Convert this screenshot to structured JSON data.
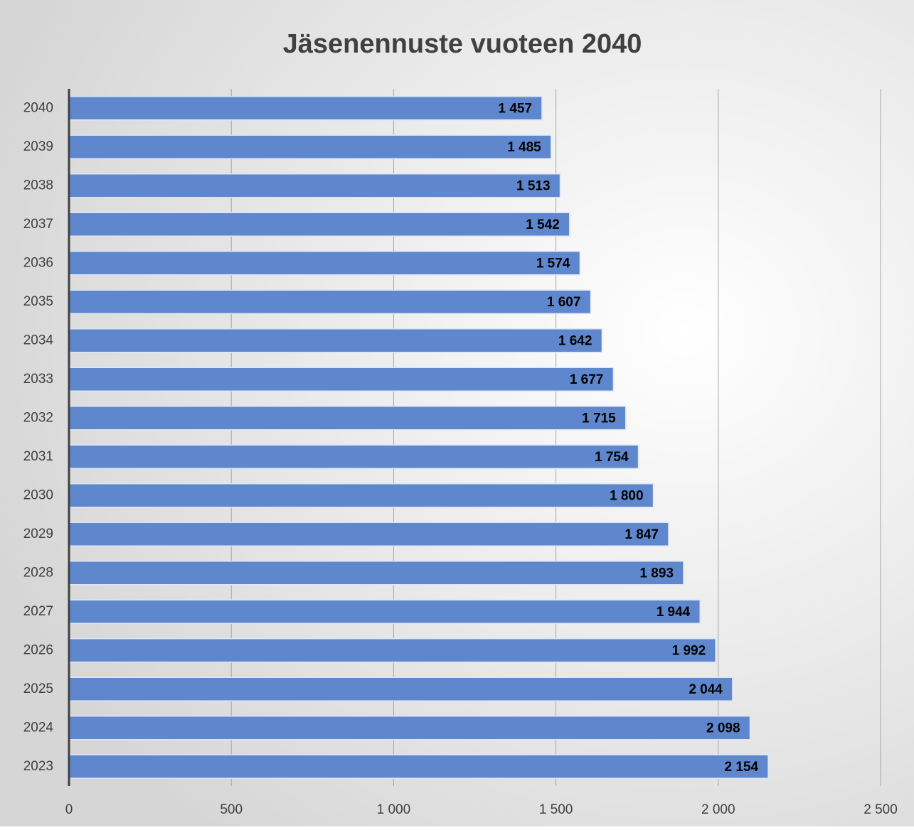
{
  "chart_data": {
    "type": "bar",
    "orientation": "horizontal",
    "title": "Jäsenennuste vuoteen 2040",
    "categories": [
      "2040",
      "2039",
      "2038",
      "2037",
      "2036",
      "2035",
      "2034",
      "2033",
      "2032",
      "2031",
      "2030",
      "2029",
      "2028",
      "2027",
      "2026",
      "2025",
      "2024",
      "2023"
    ],
    "values": [
      1457,
      1485,
      1513,
      1542,
      1574,
      1607,
      1642,
      1677,
      1715,
      1754,
      1800,
      1847,
      1893,
      1944,
      1992,
      2044,
      2098,
      2154
    ],
    "value_labels": [
      "1 457",
      "1 485",
      "1 513",
      "1 542",
      "1 574",
      "1 607",
      "1 642",
      "1 677",
      "1 715",
      "1 754",
      "1 800",
      "1 847",
      "1 893",
      "1 944",
      "1 992",
      "2 044",
      "2 098",
      "2 154"
    ],
    "color": "#5f87cd",
    "xlim": [
      0,
      2500
    ],
    "xticks": [
      0,
      500,
      {
        "value": 1000,
        "label": "1 000"
      },
      {
        "value": 1500,
        "label": "1 500"
      },
      {
        "value": 2000,
        "label": "2 000"
      },
      {
        "value": 2500,
        "label": "2 500"
      }
    ],
    "grid": true
  }
}
